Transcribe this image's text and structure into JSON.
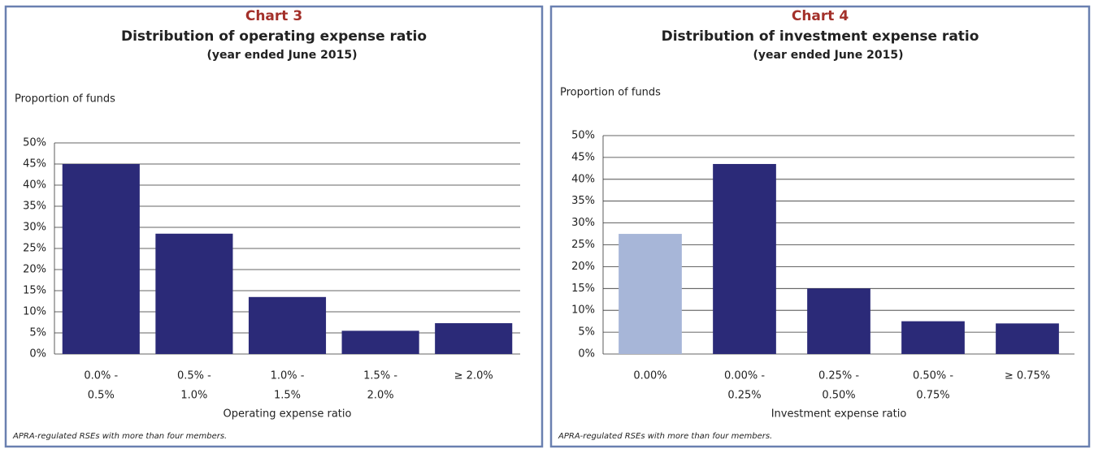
{
  "chart_data": [
    {
      "type": "bar",
      "label": "Chart 3",
      "title": "Distribution of operating expense ratio",
      "subtitle": "(year ended June 2015)",
      "y_label": "Proportion of funds",
      "x_label": "Operating expense ratio",
      "categories": [
        [
          "0.0% -",
          "0.5%"
        ],
        [
          "0.5% -",
          "1.0%"
        ],
        [
          "1.0% -",
          "1.5%"
        ],
        [
          "1.5% -",
          "2.0%"
        ],
        [
          "≥ 2.0%"
        ]
      ],
      "values": [
        45,
        28.5,
        13.5,
        5.5,
        7.3
      ],
      "colors": [
        "#2b2a78",
        "#2b2a78",
        "#2b2a78",
        "#2b2a78",
        "#2b2a78"
      ],
      "ylim": [
        0,
        50
      ],
      "yticks": [
        {
          "value": 0,
          "label": "0%"
        },
        {
          "value": 5,
          "label": "5%"
        },
        {
          "value": 10,
          "label": "10%"
        },
        {
          "value": 15,
          "label": "15%"
        },
        {
          "value": 20,
          "label": "20%"
        },
        {
          "value": 25,
          "label": "25%"
        },
        {
          "value": 30,
          "label": "30%"
        },
        {
          "value": 35,
          "label": "35%"
        },
        {
          "value": 40,
          "label": "40%"
        },
        {
          "value": 45,
          "label": "45%"
        },
        {
          "value": 50,
          "label": "50%"
        }
      ],
      "grid": true,
      "note": "APRA-regulated RSEs with more than four members."
    },
    {
      "type": "bar",
      "label": "Chart 4",
      "title": "Distribution of investment expense ratio",
      "subtitle": "(year ended June 2015)",
      "y_label": "Proportion of funds",
      "x_label": "Investment expense ratio",
      "categories": [
        [
          "0.00%"
        ],
        [
          "0.00% -",
          "0.25%"
        ],
        [
          "0.25% -",
          "0.50%"
        ],
        [
          "0.50% -",
          "0.75%"
        ],
        [
          "≥ 0.75%"
        ]
      ],
      "values": [
        27.5,
        43.5,
        15,
        7.5,
        7
      ],
      "colors": [
        "#a7b6d8",
        "#2b2a78",
        "#2b2a78",
        "#2b2a78",
        "#2b2a78"
      ],
      "ylim": [
        0,
        50
      ],
      "yticks": [
        {
          "value": 0,
          "label": "0%"
        },
        {
          "value": 5,
          "label": "5%"
        },
        {
          "value": 10,
          "label": "10%"
        },
        {
          "value": 15,
          "label": "15%"
        },
        {
          "value": 20,
          "label": "20%"
        },
        {
          "value": 25,
          "label": "25%"
        },
        {
          "value": 30,
          "label": "30%"
        },
        {
          "value": 35,
          "label": "35%"
        },
        {
          "value": 40,
          "label": "40%"
        },
        {
          "value": 45,
          "label": "45%"
        },
        {
          "value": 50,
          "label": "50%"
        }
      ],
      "grid": true,
      "note": "APRA-regulated RSEs with more than four members."
    }
  ]
}
